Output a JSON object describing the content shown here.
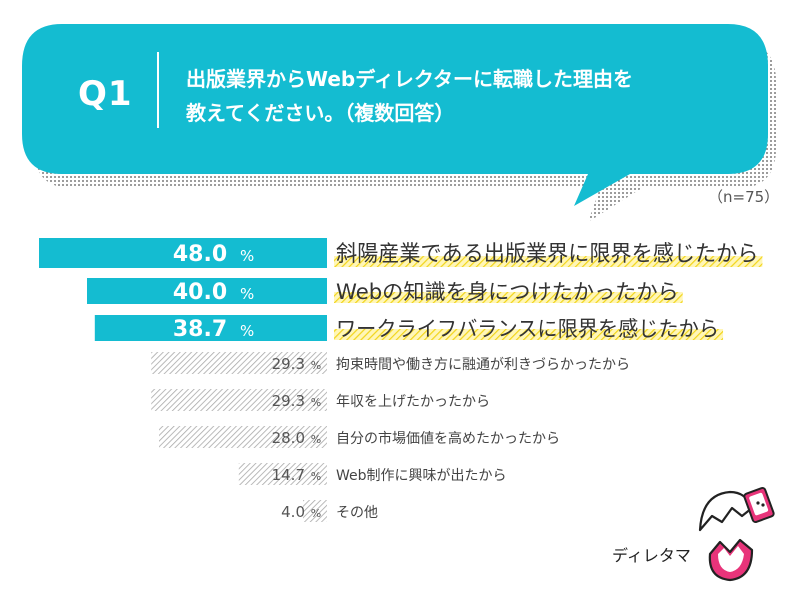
{
  "question": {
    "number": "Q1",
    "line1": "出版業界からWebディレクターに転職した理由を",
    "line2": "教えてください。（複数回答）"
  },
  "sample_size": "（n=75）",
  "signature": "ディレタマ",
  "colors": {
    "accent": "#14bcd1",
    "highlight": "#f6dd2a",
    "hatch": "#a8a8a8",
    "text": "#333333"
  },
  "chart_data": {
    "type": "bar",
    "orientation": "horizontal",
    "title": "",
    "xlabel": "",
    "ylabel": "",
    "xlim": [
      0,
      60
    ],
    "percent_sign": "%",
    "categories": [
      "斜陽産業である出版業界に限界を感じたから",
      "Webの知識を身につけたかったから",
      "ワークライフバランスに限界を感じたから",
      "拘束時間や働き方に融通が利きづらかったから",
      "年収を上げたかったから",
      "自分の市場価値を高めたかったから",
      "Web制作に興味が出たから",
      "その他"
    ],
    "values": [
      48.0,
      40.0,
      38.7,
      29.3,
      29.3,
      28.0,
      14.7,
      4.0
    ],
    "value_labels": [
      "48.0",
      "40.0",
      "38.7",
      "29.3",
      "29.3",
      "28.0",
      "14.7",
      "4.0"
    ],
    "top_n_highlighted": 3
  }
}
